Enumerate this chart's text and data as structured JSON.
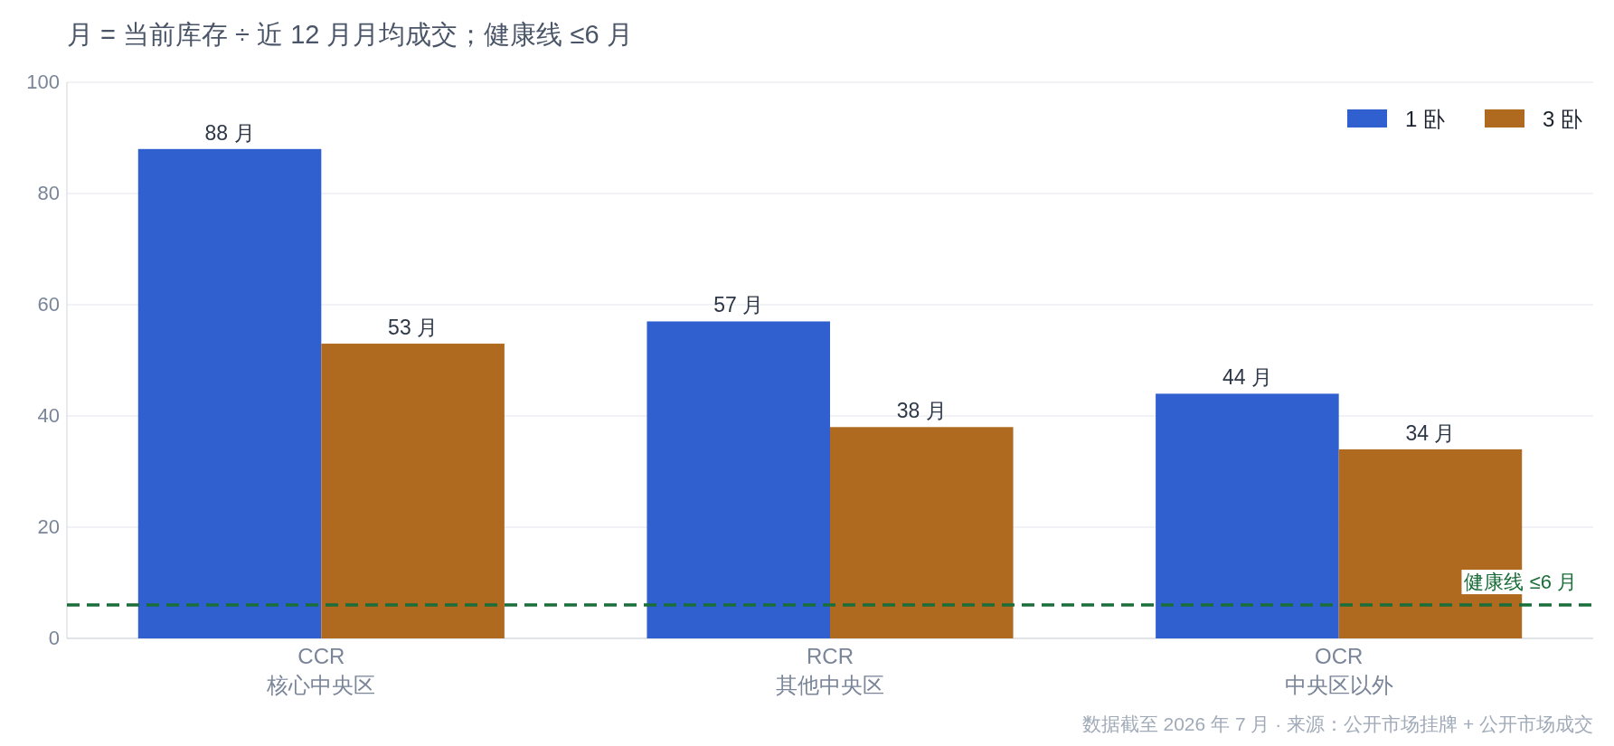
{
  "chart_data": {
    "type": "bar",
    "title": "月 = 当前库存 ÷ 近 12 月月均成交；健康线 ≤6 月",
    "categories": [
      "CCR\n核心中央区",
      "RCR\n其他中央区",
      "OCR\n中央区以外"
    ],
    "series": [
      {
        "name": "1 卧",
        "color": "#3060d0",
        "values": [
          88,
          57,
          44
        ],
        "value_labels": [
          "88 月",
          "57 月",
          "44 月"
        ]
      },
      {
        "name": "3 卧",
        "color": "#b06a20",
        "values": [
          53,
          38,
          34
        ],
        "value_labels": [
          "53 月",
          "38 月",
          "34 月"
        ]
      }
    ],
    "ylim": [
      0,
      100
    ],
    "yticks": [
      0,
      20,
      40,
      60,
      80,
      100
    ],
    "grid": "y",
    "legend": "top right",
    "ref_lines": [
      {
        "axis": "y",
        "value": 6,
        "label": "健康线 ≤6 月",
        "color": "#1a6e3a",
        "line_style": "dashed"
      }
    ],
    "annotations": [
      "数据截至 2026 年 7 月 · 来源：公开市场挂牌 + 公开市场成交"
    ]
  }
}
